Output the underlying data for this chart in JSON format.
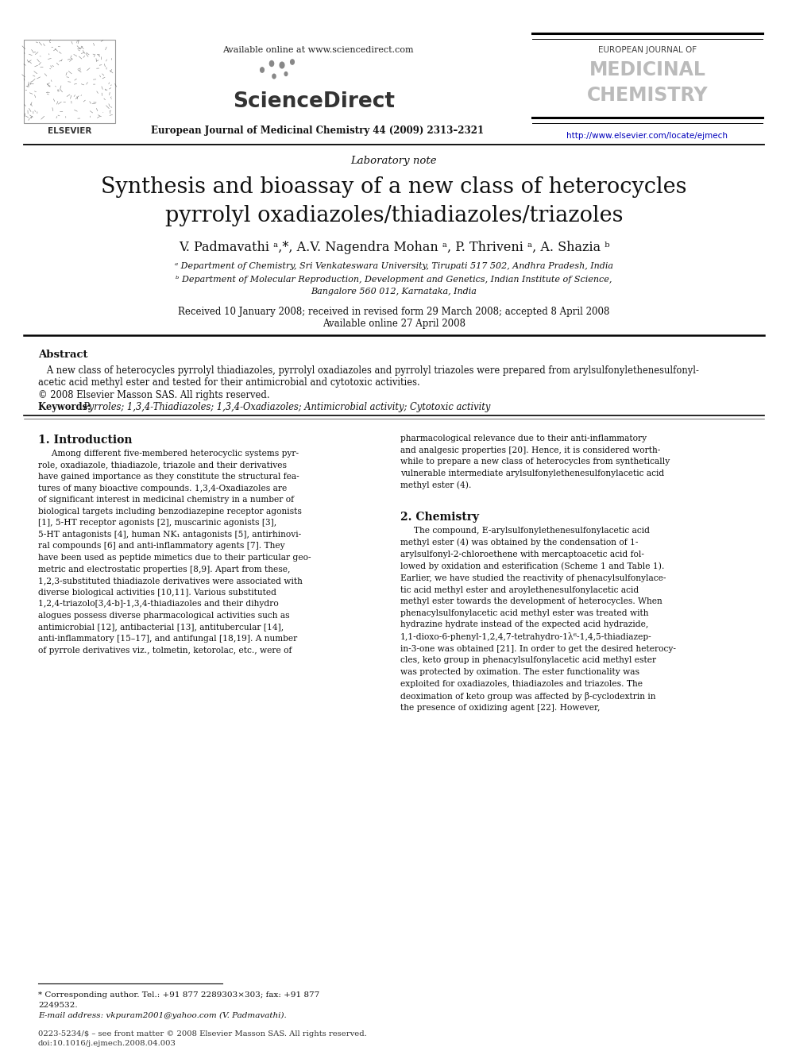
{
  "page_bg": "#ffffff",
  "header_available": "Available online at www.sciencedirect.com",
  "header_sciencedirect": "ScienceDirect",
  "header_journal_line": "European Journal of Medicinal Chemistry 44 (2009) 2313–2321",
  "header_ej_line1": "EUROPEAN JOURNAL OF",
  "header_ej_line2": "MEDICINAL",
  "header_ej_line3": "CHEMISTRY",
  "header_url": "http://www.elsevier.com/locate/ejmech",
  "elsevier_label": "ELSEVIER",
  "lab_note": "Laboratory note",
  "title1": "Synthesis and bioassay of a new class of heterocycles",
  "title2": "pyrrolyl oxadiazoles/thiadiazoles/triazoles",
  "authors": "V. Padmavathi ᵃ,*, A.V. Nagendra Mohan ᵃ, P. Thriveni ᵃ, A. Shazia ᵇ",
  "affil_a": "ᵃ Department of Chemistry, Sri Venkateswara University, Tirupati 517 502, Andhra Pradesh, India",
  "affil_b1": "ᵇ Department of Molecular Reproduction, Development and Genetics, Indian Institute of Science,",
  "affil_b2": "Bangalore 560 012, Karnataka, India",
  "received": "Received 10 January 2008; received in revised form 29 March 2008; accepted 8 April 2008",
  "available_online": "Available online 27 April 2008",
  "abstract_head": "Abstract",
  "abstract_body1": "   A new class of heterocycles pyrrolyl thiadiazoles, pyrrolyl oxadiazoles and pyrrolyl triazoles were prepared from arylsulfonylethenesulfonyl-",
  "abstract_body2": "acetic acid methyl ester and tested for their antimicrobial and cytotoxic activities.",
  "copyright": "© 2008 Elsevier Masson SAS. All rights reserved.",
  "kw_label": "Keywords: ",
  "kw_text": "Pyrroles; 1,3,4-Thiadiazoles; 1,3,4-Oxadiazoles; Antimicrobial activity; Cytotoxic activity",
  "s1_head": "1. Introduction",
  "s1_para": "     Among different five-membered heterocyclic systems pyr-\nrole, oxadiazole, thiadiazole, triazole and their derivatives\nhave gained importance as they constitute the structural fea-\ntures of many bioactive compounds. 1,3,4-Oxadiazoles are\nof significant interest in medicinal chemistry in a number of\nbiological targets including benzodiazepine receptor agonists\n[1], 5-HT receptor agonists [2], muscarinic agonists [3],\n5-HT antagonists [4], human NK₁ antagonists [5], antirhinovi-\nral compounds [6] and anti-inflammatory agents [7]. They\nhave been used as peptide mimetics due to their particular geo-\nmetric and electrostatic properties [8,9]. Apart from these,\n1,2,3-substituted thiadiazole derivatives were associated with\ndiverse biological activities [10,11]. Various substituted\n1,2,4-triazolo[3,4-b]-1,3,4-thiadiazoles and their dihydro\nalogues possess diverse pharmacological activities such as\nantimicrobial [12], antibacterial [13], antitubercular [14],\nanti-inflammatory [15–17], and antifungal [18,19]. A number\nof pyrrole derivatives viz., tolmetin, ketorolac, etc., were of",
  "s1_col2": "pharmacological relevance due to their anti-inflammatory\nand analgesic properties [20]. Hence, it is considered worth-\nwhile to prepare a new class of heterocycles from synthetically\nvulnerable intermediate arylsulfonylethenesulfonylacetic acid\nmethyl ester (4).",
  "s2_head": "2. Chemistry",
  "s2_para": "     The compound, E-arylsulfonylethenesulfonylacetic acid\nmethyl ester (4) was obtained by the condensation of 1-\narylsulfonyl-2-chloroethene with mercaptoacetic acid fol-\nlowed by oxidation and esterification (Scheme 1 and Table 1).\nEarlier, we have studied the reactivity of phenacylsulfonylace-\ntic acid methyl ester and aroylethenesulfonylacetic acid\nmethyl ester towards the development of heterocycles. When\nphenacylsulfonylacetic acid methyl ester was treated with\nhydrazine hydrate instead of the expected acid hydrazide,\n1,1-dioxo-6-phenyl-1,2,4,7-tetrahydro-1λ⁶-1,4,5-thiadiazep-\nin-3-one was obtained [21]. In order to get the desired heterocy-\ncles, keto group in phenacylsulfonylacetic acid methyl ester\nwas protected by oximation. The ester functionality was\nexploited for oxadiazoles, thiadiazoles and triazoles. The\ndeoximation of keto group was affected by β-cyclodextrin in\nthe presence of oxidizing agent [22]. However,",
  "fn_star": "* Corresponding author. Tel.: +91 877 2289303×303; fax: +91 877",
  "fn_star2": "2249532.",
  "fn_email": "E-mail address: vkpuram2001@yahoo.com (V. Padmavathi).",
  "footer1": "0223-5234/$ – see front matter © 2008 Elsevier Masson SAS. All rights reserved.",
  "footer2": "doi:10.1016/j.ejmech.2008.04.003"
}
